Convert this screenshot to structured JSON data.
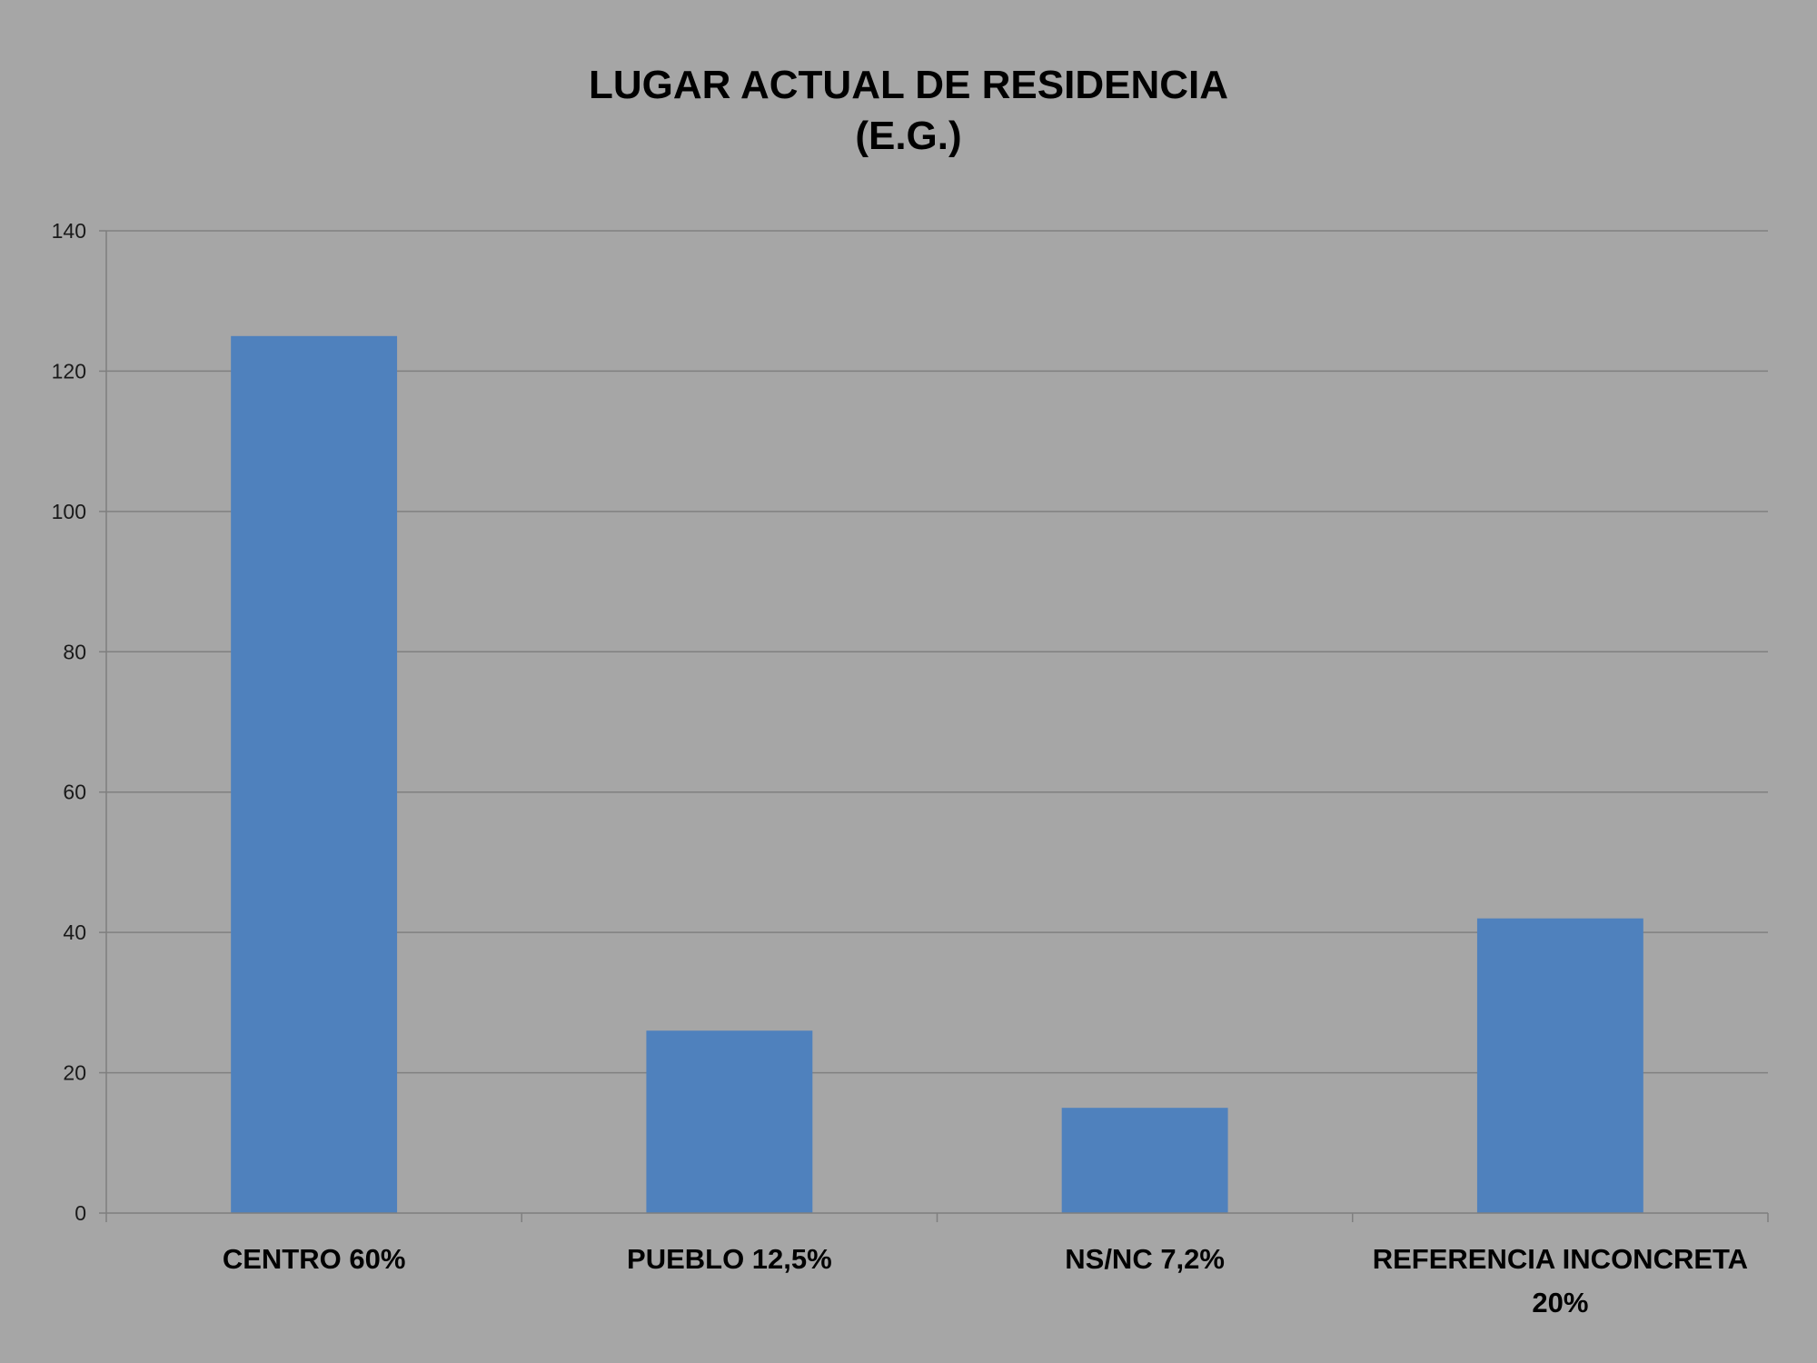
{
  "chart_data": {
    "type": "bar",
    "title": "LUGAR ACTUAL DE RESIDENCIA",
    "subtitle": "(E.G.)",
    "xlabel": "",
    "ylabel": "",
    "categories": [
      "CENTRO 60%",
      "PUEBLO 12,5%",
      "NS/NC 7,2%",
      "REFERENCIA INCONCRETA 20%"
    ],
    "category_lines": [
      [
        "CENTRO 60%"
      ],
      [
        "PUEBLO 12,5%"
      ],
      [
        "NS/NC 7,2%"
      ],
      [
        "REFERENCIA INCONCRETA",
        "20%"
      ]
    ],
    "values": [
      125,
      26,
      15,
      42
    ],
    "ylim": [
      0,
      140
    ],
    "yticks": [
      0,
      20,
      40,
      60,
      80,
      100,
      120,
      140
    ],
    "grid": true,
    "legend": "none",
    "colors": {
      "bar": "#4f81bd",
      "background": "#a6a6a6",
      "grid": "#808080",
      "axis": "#7f7f7f"
    }
  }
}
